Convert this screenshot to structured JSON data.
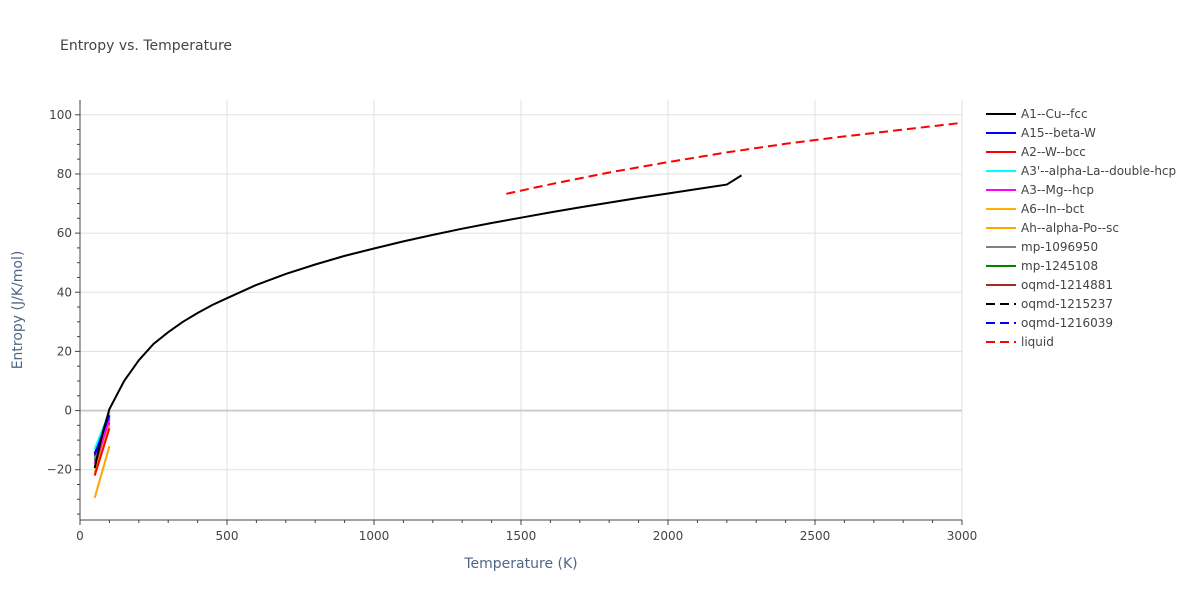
{
  "chart_data": {
    "type": "line",
    "title": "Entropy vs. Temperature",
    "xlabel": "Temperature (K)",
    "ylabel": "Entropy (J/K/mol)",
    "xlim": [
      0,
      3000
    ],
    "ylim": [
      -37,
      105
    ],
    "xticks": [
      0,
      500,
      1000,
      1500,
      2000,
      2500,
      3000
    ],
    "xtick_labels": [
      "0",
      "500",
      "1000",
      "1500",
      "2000",
      "2500",
      "3000"
    ],
    "yticks": [
      -20,
      0,
      20,
      40,
      60,
      80,
      100
    ],
    "ytick_labels": [
      "−20",
      "0",
      "20",
      "40",
      "60",
      "80",
      "100"
    ],
    "grid": true,
    "legend_position": "right",
    "series": [
      {
        "name": "A1--Cu--fcc",
        "color": "#000000",
        "dash": "solid",
        "x": [
          50,
          60,
          70,
          80,
          90,
          100,
          150,
          200,
          250,
          300,
          350,
          400,
          450,
          500,
          600,
          700,
          800,
          900,
          1000,
          1100,
          1200,
          1300,
          1400,
          1500,
          1600,
          1700,
          1800,
          1900,
          2000,
          2100,
          2200,
          2250
        ],
        "y": [
          -19.5,
          -15,
          -10.5,
          -6.5,
          -3,
          0.5,
          10,
          17,
          22.5,
          26.5,
          30,
          33,
          35.7,
          38,
          42.5,
          46.2,
          49.4,
          52.3,
          54.8,
          57.2,
          59.4,
          61.5,
          63.4,
          65.2,
          67,
          68.7,
          70.3,
          71.9,
          73.4,
          74.9,
          76.4,
          79.5
        ]
      },
      {
        "name": "A15--beta-W",
        "color": "#0000ff",
        "dash": "solid",
        "x": [
          50,
          100
        ],
        "y": [
          -15,
          -1.5
        ]
      },
      {
        "name": "A2--W--bcc",
        "color": "#ff0000",
        "dash": "solid",
        "x": [
          50,
          100
        ],
        "y": [
          -22,
          -6
        ]
      },
      {
        "name": "A3'--alpha-La--double-hcp",
        "color": "#00ffff",
        "dash": "solid",
        "x": [
          50,
          100
        ],
        "y": [
          -13,
          -0.5
        ]
      },
      {
        "name": "A3--Mg--hcp",
        "color": "#ff00ff",
        "dash": "solid",
        "x": [
          50,
          100
        ],
        "y": [
          -18,
          -3
        ]
      },
      {
        "name": "A6--In--bct",
        "color": "#ffb000",
        "dash": "solid",
        "x": [
          50,
          100
        ],
        "y": [
          -21,
          -5
        ]
      },
      {
        "name": "Ah--alpha-Po--sc",
        "color": "#ffa500",
        "dash": "solid",
        "x": [
          50,
          100
        ],
        "y": [
          -29.5,
          -12
        ]
      },
      {
        "name": "mp-1096950",
        "color": "#808080",
        "dash": "solid",
        "x": [
          50,
          100
        ],
        "y": [
          -16,
          -2
        ]
      },
      {
        "name": "mp-1245108",
        "color": "#008000",
        "dash": "solid",
        "x": [
          50,
          100
        ],
        "y": [
          -17,
          -2.5
        ]
      },
      {
        "name": "oqmd-1214881",
        "color": "#a52a2a",
        "dash": "solid",
        "x": [
          50,
          100
        ],
        "y": [
          -19,
          -4
        ]
      },
      {
        "name": "oqmd-1215237",
        "color": "#000000",
        "dash": "dash",
        "x": [
          50,
          100
        ],
        "y": [
          -14.5,
          -1
        ]
      },
      {
        "name": "oqmd-1216039",
        "color": "#0000ff",
        "dash": "dash",
        "x": [
          50,
          100
        ],
        "y": [
          -15.5,
          -1.8
        ]
      },
      {
        "name": "liquid",
        "color": "#ff0000",
        "dash": "dash",
        "x": [
          1450,
          1600,
          1800,
          2000,
          2200,
          2400,
          2600,
          2800,
          3000
        ],
        "y": [
          73.3,
          76.5,
          80.5,
          84,
          87.3,
          90.2,
          92.7,
          95,
          97.3
        ]
      }
    ]
  }
}
